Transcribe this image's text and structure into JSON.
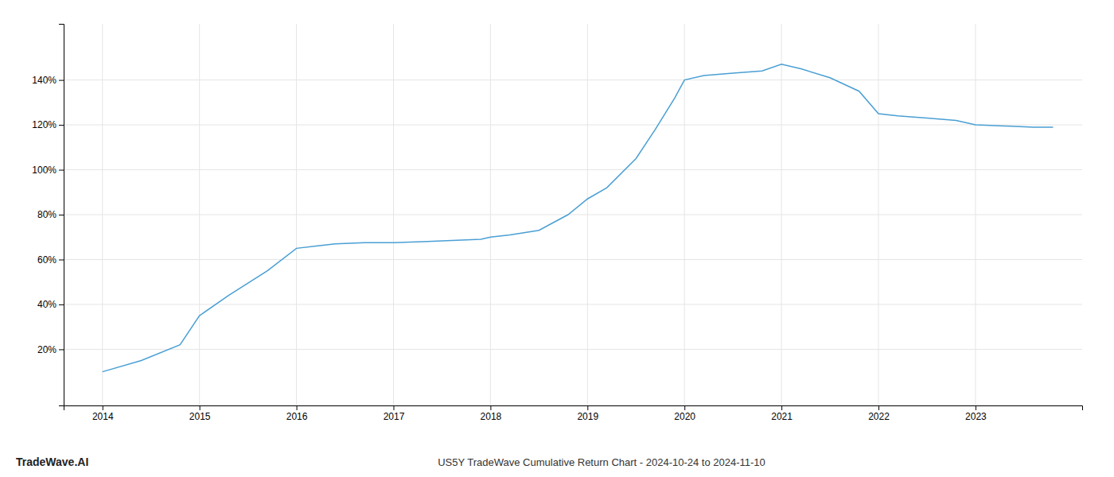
{
  "chart_data": {
    "type": "line",
    "title": "US5Y TradeWave Cumulative Return Chart - 2024-10-24 to 2024-11-10",
    "annotations": [
      "TradeWave.AI"
    ],
    "x": [
      2014.0,
      2014.4,
      2014.8,
      2015.0,
      2015.3,
      2015.7,
      2016.0,
      2016.2,
      2016.4,
      2016.7,
      2017.0,
      2017.3,
      2017.6,
      2017.9,
      2018.0,
      2018.2,
      2018.5,
      2018.8,
      2019.0,
      2019.2,
      2019.5,
      2019.7,
      2019.9,
      2020.0,
      2020.2,
      2020.5,
      2020.8,
      2021.0,
      2021.2,
      2021.5,
      2021.8,
      2022.0,
      2022.2,
      2022.5,
      2022.8,
      2023.0,
      2023.3,
      2023.6,
      2023.8
    ],
    "values": [
      10,
      15,
      22,
      35,
      44,
      55,
      65,
      66,
      67,
      67.5,
      67.5,
      68,
      68.5,
      69,
      70,
      71,
      73,
      80,
      87,
      92,
      105,
      118,
      132,
      140,
      142,
      143,
      144,
      147,
      145,
      141,
      135,
      125,
      124,
      123,
      122,
      120,
      119.5,
      119,
      119
    ],
    "color": "#4a9fd4",
    "xlim": [
      2013.6,
      2024.1
    ],
    "ylim": [
      -5,
      165
    ],
    "xticks": [
      2014,
      2015,
      2016,
      2017,
      2018,
      2019,
      2020,
      2021,
      2022,
      2023
    ],
    "yticks": [
      {
        "value": 20,
        "label": "20%"
      },
      {
        "value": 40,
        "label": "40%"
      },
      {
        "value": 60,
        "label": "60%"
      },
      {
        "value": 80,
        "label": "80%"
      },
      {
        "value": 100,
        "label": "100%"
      },
      {
        "value": 120,
        "label": "120%"
      },
      {
        "value": 140,
        "label": "140%"
      }
    ],
    "grid": true
  }
}
